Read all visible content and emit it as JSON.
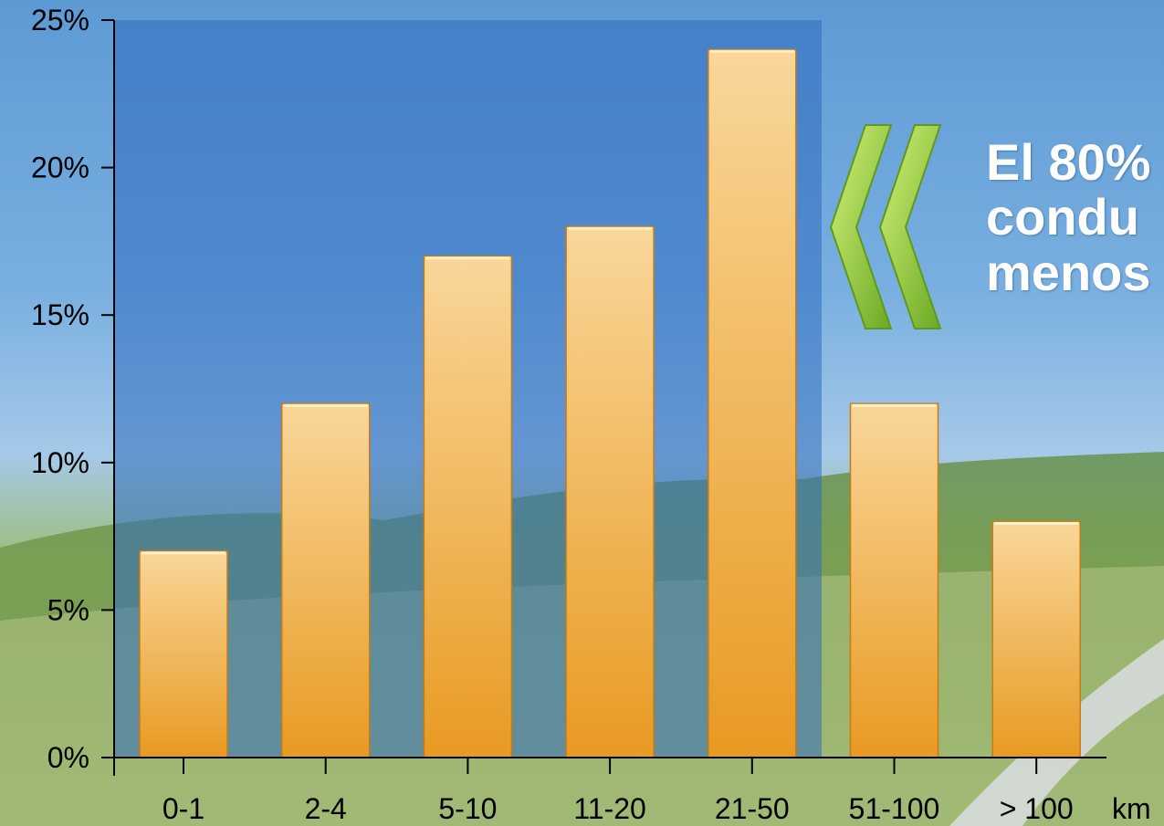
{
  "headline": {
    "lines": [
      "El 80%",
      "condu",
      "menos"
    ]
  },
  "colors": {
    "bar_top": "#f9d79a",
    "bar_bottom": "#e89a22",
    "plot_overlay": "#2f6cc0",
    "chevron": "#8cc63f"
  },
  "icons": [
    "double-chevron-left-icon"
  ],
  "chart_data": {
    "type": "bar",
    "categories": [
      "0-1",
      "2-4",
      "5-10",
      "11-20",
      "21-50",
      "51-100",
      "> 100"
    ],
    "values": [
      7,
      12,
      17,
      18,
      24,
      12,
      8
    ],
    "title": "",
    "xlabel": "km",
    "ylabel": "",
    "ylim": [
      0,
      25
    ],
    "yticks": [
      "0%",
      "5%",
      "10%",
      "15%",
      "20%",
      "25%"
    ],
    "grid": false,
    "legend": "none"
  }
}
